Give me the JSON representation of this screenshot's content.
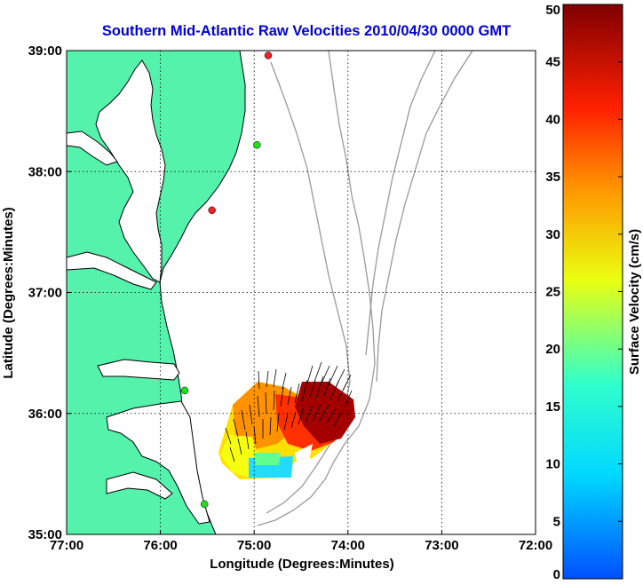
{
  "title": "Southern Mid-Atlantic Raw Velocities 2010/04/30 0000 GMT",
  "colors": {
    "land": "#55f2ac",
    "title": "#0000d8",
    "coast": "#000000",
    "bathy": "#999999",
    "site_green": "#22dd22",
    "site_red": "#ee2222"
  },
  "chart_data": {
    "type": "map",
    "xlabel": "Longitude (Degrees:Minutes)",
    "ylabel": "Latitude (Degrees:Minutes)",
    "x_ticks": [
      "77:00",
      "76:00",
      "75:00",
      "74:00",
      "73:00",
      "72:00"
    ],
    "y_ticks": [
      "39:00",
      "38:00",
      "37:00",
      "36:00",
      "35:00"
    ],
    "xlim": [
      -77,
      -72
    ],
    "ylim": [
      35,
      39
    ],
    "grid": true,
    "colorbar": {
      "label": "Surface Velocity (cm/s)",
      "ticks": [
        "50",
        "45",
        "40",
        "35",
        "30",
        "25",
        "20",
        "15",
        "10",
        "5",
        "0"
      ],
      "range": [
        0,
        50
      ]
    },
    "sites": [
      {
        "lon": -74.85,
        "lat": 38.96,
        "color": "red"
      },
      {
        "lon": -74.97,
        "lat": 38.22,
        "color": "green"
      },
      {
        "lon": -75.45,
        "lat": 37.68,
        "color": "red"
      },
      {
        "lon": -75.74,
        "lat": 36.19,
        "color": "green"
      },
      {
        "lon": -75.53,
        "lat": 35.25,
        "color": "green"
      }
    ]
  }
}
